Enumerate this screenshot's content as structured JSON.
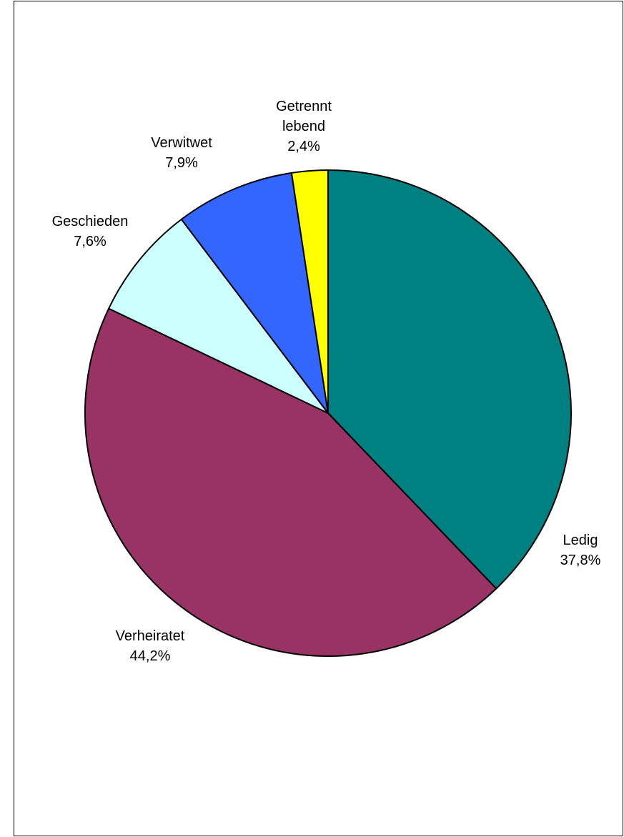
{
  "chart_data": {
    "type": "pie",
    "start_angle_deg": 0,
    "direction": "clockwise",
    "slices": [
      {
        "label": "Ledig",
        "value_text": "37,8%",
        "value": 37.8,
        "color": "#008080"
      },
      {
        "label": "Verheiratet",
        "value_text": "44,2%",
        "value": 44.2,
        "color": "#993366"
      },
      {
        "label": "Geschieden",
        "value_text": "7,6%",
        "value": 7.6,
        "color": "#CCFFFF"
      },
      {
        "label": "Verwitwet",
        "value_text": "7,9%",
        "value": 7.9,
        "color": "#3366FF"
      },
      {
        "label": "Getrennt lebend",
        "label_lines": [
          "Getrennt",
          "lebend"
        ],
        "value_text": "2,4%",
        "value": 2.4,
        "color": "#FFFF00"
      }
    ],
    "outline_color": "#000000"
  }
}
